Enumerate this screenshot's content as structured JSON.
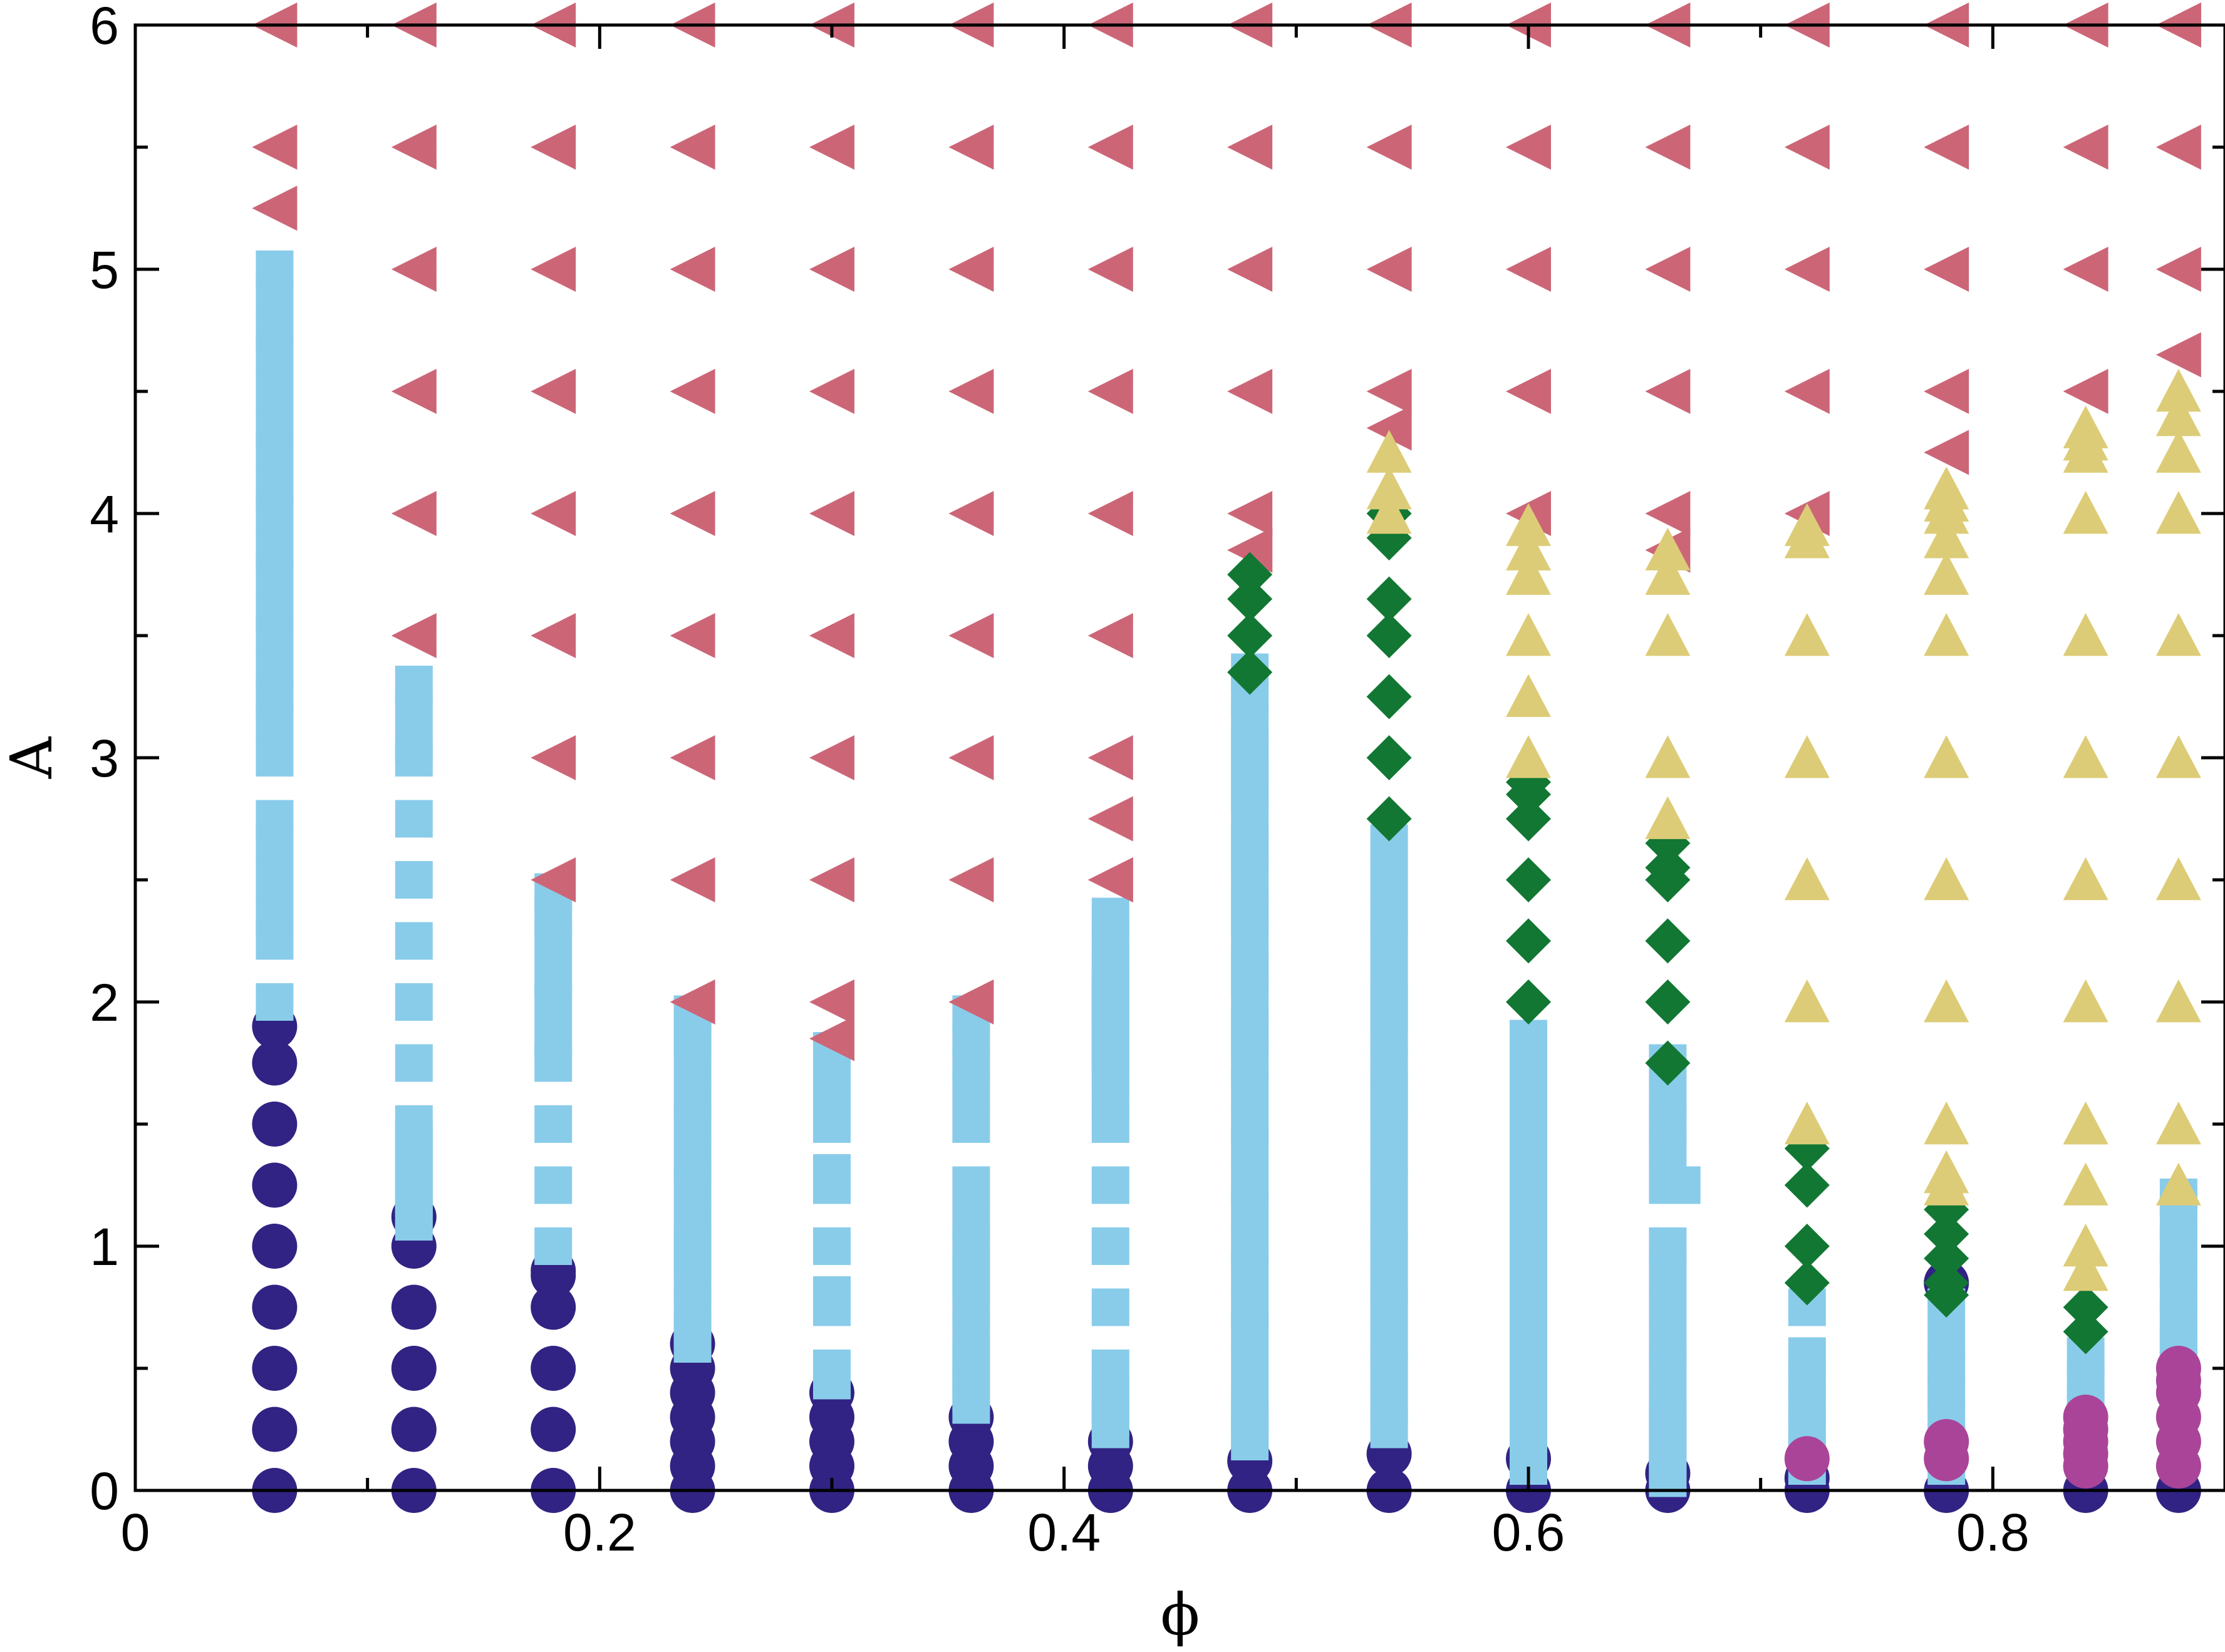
{
  "chart_data": {
    "type": "scatter",
    "title": "",
    "xlabel": "ϕ",
    "ylabel": "A",
    "xlim": [
      0,
      0.9
    ],
    "ylim": [
      0,
      6
    ],
    "x_ticks": [
      "0",
      "0.2",
      "0.4",
      "0.6",
      "0.8"
    ],
    "x_tick_values": [
      0,
      0.2,
      0.4,
      0.6,
      0.8
    ],
    "y_ticks": [
      "0",
      "1",
      "2",
      "3",
      "4",
      "5",
      "6"
    ],
    "y_tick_values": [
      0,
      1,
      2,
      3,
      4,
      5,
      6
    ],
    "minor_x_step": 0.1,
    "minor_y_step": 0.5,
    "grid": false,
    "legend": "none",
    "series": [
      {
        "marker": "circle",
        "color": "#312383",
        "x": [
          0.06,
          0.06,
          0.06,
          0.06,
          0.06,
          0.06,
          0.06,
          0.06,
          0.06,
          0.12,
          0.12,
          0.12,
          0.12,
          0.12,
          0.12,
          0.18,
          0.18,
          0.18,
          0.18,
          0.18,
          0.18,
          0.24,
          0.24,
          0.24,
          0.24,
          0.24,
          0.24,
          0.24,
          0.3,
          0.3,
          0.3,
          0.3,
          0.3,
          0.36,
          0.36,
          0.36,
          0.36,
          0.42,
          0.42,
          0.42,
          0.48,
          0.48,
          0.54,
          0.54,
          0.6,
          0.6,
          0.66,
          0.66,
          0.72,
          0.72,
          0.78,
          0.78,
          0.84,
          0.88
        ],
        "y": [
          0,
          0.25,
          0.5,
          0.75,
          1,
          1.25,
          1.5,
          1.75,
          1.9,
          0,
          0.25,
          0.5,
          0.75,
          1,
          1.12,
          0,
          0.25,
          0.5,
          0.75,
          0.9,
          0.88,
          0,
          0.1,
          0.2,
          0.3,
          0.4,
          0.5,
          0.6,
          0,
          0.1,
          0.2,
          0.3,
          0.4,
          0,
          0.1,
          0.2,
          0.3,
          0,
          0.1,
          0.2,
          0,
          0.12,
          0,
          0.15,
          0,
          0.13,
          0,
          0.07,
          0,
          0.05,
          0,
          0.85,
          0,
          0
        ]
      },
      {
        "marker": "square",
        "color": "#89ccea",
        "x": [
          0.06,
          0.06,
          0.06,
          0.06,
          0.06,
          0.06,
          0.06,
          0.06,
          0.06,
          0.06,
          0.06,
          0.06,
          0.06,
          0.06,
          0.06,
          0.06,
          0.06,
          0.06,
          0.06,
          0.06,
          0.06,
          0.06,
          0.06,
          0.12,
          0.12,
          0.12,
          0.12,
          0.12,
          0.12,
          0.12,
          0.12,
          0.12,
          0.12,
          0.12,
          0.12,
          0.12,
          0.12,
          0.12,
          0.12,
          0.12,
          0.12,
          0.18,
          0.18,
          0.18,
          0.18,
          0.18,
          0.18,
          0.18,
          0.18,
          0.18,
          0.18,
          0.24,
          0.24,
          0.24,
          0.24,
          0.24,
          0.24,
          0.24,
          0.24,
          0.24,
          0.24,
          0.24,
          0.24,
          0.24,
          0.24,
          0.24,
          0.3,
          0.3,
          0.3,
          0.3,
          0.3,
          0.3,
          0.3,
          0.3,
          0.3,
          0.3,
          0.3,
          0.3,
          0.36,
          0.36,
          0.36,
          0.36,
          0.36,
          0.36,
          0.36,
          0.36,
          0.36,
          0.36,
          0.36,
          0.36,
          0.36,
          0.36,
          0.36,
          0.36,
          0.36,
          0.42,
          0.42,
          0.42,
          0.42,
          0.42,
          0.42,
          0.42,
          0.42,
          0.42,
          0.42,
          0.42,
          0.42,
          0.42,
          0.42,
          0.42,
          0.42,
          0.42,
          0.42,
          0.42,
          0.42,
          0.42,
          0.42,
          0.42,
          0.48,
          0.48,
          0.48,
          0.48,
          0.48,
          0.48,
          0.48,
          0.48,
          0.48,
          0.48,
          0.48,
          0.48,
          0.48,
          0.48,
          0.48,
          0.48,
          0.48,
          0.48,
          0.48,
          0.48,
          0.48,
          0.48,
          0.48,
          0.48,
          0.48,
          0.48,
          0.48,
          0.48,
          0.48,
          0.48,
          0.48,
          0.48,
          0.48,
          0.48,
          0.54,
          0.54,
          0.54,
          0.54,
          0.54,
          0.54,
          0.54,
          0.54,
          0.54,
          0.54,
          0.54,
          0.54,
          0.54,
          0.54,
          0.54,
          0.54,
          0.54,
          0.54,
          0.54,
          0.54,
          0.54,
          0.54,
          0.6,
          0.6,
          0.6,
          0.6,
          0.6,
          0.6,
          0.6,
          0.6,
          0.6,
          0.6,
          0.6,
          0.6,
          0.6,
          0.6,
          0.6,
          0.6,
          0.6,
          0.6,
          0.6,
          0.6,
          0.6,
          0.6,
          0.6,
          0.66,
          0.66,
          0.66,
          0.66,
          0.66,
          0.66,
          0.66,
          0.66,
          0.66,
          0.66,
          0.66,
          0.66,
          0.66,
          0.66,
          0.66,
          0.66,
          0.66,
          0.666,
          0.72,
          0.72,
          0.72,
          0.72,
          0.72,
          0.72,
          0.72,
          0.78,
          0.78,
          0.78,
          0.78,
          0.78,
          0.78,
          0.78,
          0.78,
          0.84,
          0.84,
          0.84,
          0.84,
          0.84,
          0.88,
          0.88,
          0.88,
          0.88,
          0.88,
          0.88,
          0.88,
          0.88,
          0.88,
          0.88,
          0.88,
          0.88
        ],
        "y": [
          5.0,
          4.9,
          4.75,
          4.65,
          4.5,
          4.35,
          4.25,
          4.1,
          4.0,
          3.85,
          3.75,
          3.5,
          3.25,
          3.0,
          2.75,
          2.5,
          2.25,
          2.0,
          3.6,
          3.35,
          3.15,
          2.65,
          2.35,
          3.3,
          3.2,
          3.0,
          2.75,
          2.5,
          2.25,
          2.0,
          1.75,
          1.5,
          1.45,
          1.4,
          1.35,
          1.3,
          1.25,
          1.2,
          1.15,
          1.1,
          3.05,
          2.45,
          2.25,
          2.0,
          1.75,
          1.5,
          1.25,
          1.0,
          2.35,
          2.1,
          1.85,
          1.95,
          1.85,
          1.75,
          1.5,
          1.25,
          1.0,
          0.85,
          0.75,
          0.65,
          1.9,
          1.6,
          1.35,
          1.1,
          0.95,
          0.6,
          1.8,
          1.7,
          1.6,
          1.5,
          1.25,
          1.0,
          0.75,
          0.5,
          0.45,
          0.5,
          0.8,
          1.3,
          1.95,
          1.85,
          1.75,
          1.5,
          1.25,
          1.0,
          0.85,
          0.75,
          0.65,
          0.55,
          0.5,
          0.45,
          0.4,
          0.35,
          1.65,
          1.1,
          0.9,
          2.35,
          2.25,
          2.15,
          2.1,
          2.05,
          2.0,
          1.95,
          1.9,
          1.85,
          1.8,
          1.75,
          1.5,
          1.25,
          1.0,
          0.75,
          0.5,
          0.4,
          0.35,
          0.3,
          0.25,
          2.0,
          1.7,
          1.6,
          3.35,
          3.25,
          3.0,
          2.75,
          2.5,
          2.25,
          2.0,
          1.75,
          1.5,
          1.25,
          1.0,
          0.75,
          0.5,
          0.35,
          0.25,
          0.2,
          3.15,
          2.9,
          2.65,
          2.4,
          2.15,
          1.9,
          1.65,
          1.4,
          1.15,
          0.9,
          0.65,
          0.3,
          3.05,
          2.85,
          2.6,
          2.35,
          2.1,
          1.85,
          2.5,
          2.25,
          2.0,
          1.75,
          1.5,
          1.25,
          1.0,
          0.75,
          0.5,
          0.25,
          2.35,
          2.1,
          1.85,
          1.6,
          1.35,
          1.1,
          0.85,
          0.6,
          0.35,
          2.65,
          1.95,
          1.65,
          1.85,
          1.75,
          1.5,
          1.25,
          1.0,
          0.75,
          0.5,
          0.45,
          0.4,
          0.35,
          0.3,
          0.25,
          0.2,
          0.15,
          0.1,
          0.6,
          1.6,
          1.35,
          1.1,
          0.85,
          0.55,
          0.65,
          0.7,
          1.75,
          1.6,
          1.5,
          1.4,
          1.25,
          1.0,
          0.75,
          0.5,
          0.35,
          0.3,
          0.25,
          0.2,
          0.15,
          0.1,
          0.05,
          0.9,
          0.6,
          1.25,
          0.75,
          0.55,
          0.45,
          0.35,
          0.25,
          0.15,
          0.1,
          0.75,
          0.6,
          0.5,
          0.4,
          0.3,
          0.2,
          0.15,
          0.1,
          0.55,
          0.45,
          0.35,
          0.25,
          0.15,
          1.2,
          1.1,
          1.0,
          0.9,
          0.8,
          0.7,
          0.6,
          0.55,
          0.5,
          0.45,
          0.4,
          0.35
        ]
      },
      {
        "marker": "triangle-left",
        "color": "#cc6677",
        "x": [
          0.06,
          0.06,
          0.06,
          0.12,
          0.12,
          0.12,
          0.12,
          0.12,
          0.12,
          0.18,
          0.18,
          0.18,
          0.18,
          0.18,
          0.18,
          0.18,
          0.18,
          0.24,
          0.24,
          0.24,
          0.24,
          0.24,
          0.24,
          0.24,
          0.24,
          0.24,
          0.3,
          0.3,
          0.3,
          0.3,
          0.3,
          0.3,
          0.3,
          0.3,
          0.3,
          0.3,
          0.36,
          0.36,
          0.36,
          0.36,
          0.36,
          0.36,
          0.36,
          0.36,
          0.36,
          0.42,
          0.42,
          0.42,
          0.42,
          0.42,
          0.42,
          0.42,
          0.42,
          0.42,
          0.42,
          0.48,
          0.48,
          0.48,
          0.48,
          0.48,
          0.48,
          0.48,
          0.54,
          0.54,
          0.54,
          0.54,
          0.54,
          0.6,
          0.6,
          0.6,
          0.6,
          0.6,
          0.66,
          0.66,
          0.66,
          0.66,
          0.66,
          0.66,
          0.72,
          0.72,
          0.72,
          0.72,
          0.72,
          0.78,
          0.78,
          0.78,
          0.78,
          0.78,
          0.84,
          0.84,
          0.84,
          0.84,
          0.88,
          0.88,
          0.88,
          0.88,
          0.88
        ],
        "y": [
          6,
          5.5,
          5.25,
          6,
          5.5,
          5,
          4.5,
          4,
          3.5,
          6,
          5.5,
          5,
          4.5,
          4,
          3.5,
          3,
          2.5,
          6,
          5.5,
          5,
          4.5,
          4,
          3.5,
          3,
          2.5,
          2,
          6,
          5.5,
          5,
          4.5,
          4,
          3.5,
          3,
          2.5,
          2,
          1.85,
          6,
          5.5,
          5,
          4.5,
          4,
          3.5,
          3,
          2.5,
          2,
          6,
          5.5,
          5,
          4.5,
          4,
          3.5,
          3,
          2.75,
          2.5,
          2.5,
          6,
          5.5,
          5,
          4.5,
          4,
          3.85,
          3.85,
          6,
          5.5,
          5,
          4.5,
          4.35,
          6,
          5.5,
          5,
          4.5,
          4,
          6,
          5.5,
          5,
          4.5,
          4,
          3.85,
          6,
          5.5,
          5,
          4.5,
          4,
          6,
          5.5,
          5,
          4.5,
          4.25,
          6,
          5.5,
          5,
          4.5,
          6,
          5.5,
          5,
          4.65,
          6
        ]
      },
      {
        "marker": "diamond",
        "color": "#117733",
        "x": [
          0.48,
          0.48,
          0.48,
          0.48,
          0.54,
          0.54,
          0.54,
          0.54,
          0.54,
          0.54,
          0.54,
          0.6,
          0.6,
          0.6,
          0.6,
          0.6,
          0.6,
          0.66,
          0.66,
          0.66,
          0.66,
          0.66,
          0.66,
          0.72,
          0.72,
          0.72,
          0.72,
          0.78,
          0.78,
          0.78,
          0.78,
          0.78,
          0.84,
          0.84
        ],
        "y": [
          3.75,
          3.65,
          3.5,
          3.35,
          4.0,
          3.9,
          3.65,
          3.5,
          3.25,
          3.0,
          2.75,
          2.9,
          2.85,
          2.75,
          2.5,
          2.25,
          2.0,
          2.65,
          2.5,
          2.25,
          2.0,
          1.75,
          2.55,
          1.4,
          1.25,
          1.0,
          0.85,
          1.15,
          1.05,
          0.95,
          0.85,
          0.8,
          0.75,
          0.65
        ]
      },
      {
        "marker": "triangle-up",
        "color": "#ddcc77",
        "x": [
          0.54,
          0.54,
          0.54,
          0.6,
          0.6,
          0.6,
          0.6,
          0.6,
          0.6,
          0.66,
          0.66,
          0.66,
          0.66,
          0.66,
          0.72,
          0.72,
          0.72,
          0.72,
          0.72,
          0.72,
          0.72,
          0.78,
          0.78,
          0.78,
          0.78,
          0.78,
          0.78,
          0.78,
          0.78,
          0.78,
          0.78,
          0.78,
          0.78,
          0.84,
          0.84,
          0.84,
          0.84,
          0.84,
          0.84,
          0.84,
          0.84,
          0.84,
          0.84,
          0.84,
          0.84,
          0.84,
          0.88,
          0.88,
          0.88,
          0.88,
          0.88,
          0.88,
          0.88,
          0.88,
          0.88,
          0.88
        ],
        "y": [
          4.25,
          4.1,
          4.0,
          3.95,
          3.75,
          3.5,
          3.25,
          3.0,
          3.85,
          3.75,
          3.5,
          3.0,
          2.75,
          3.85,
          3.95,
          3.5,
          3.0,
          2.5,
          2.0,
          1.5,
          3.9,
          4.1,
          4.0,
          3.75,
          3.5,
          3.0,
          2.5,
          2.0,
          1.5,
          1.25,
          4.05,
          3.9,
          1.3,
          4.35,
          4.25,
          4.0,
          3.5,
          3.0,
          2.5,
          2.0,
          1.5,
          1.25,
          1.0,
          0.9,
          4.3,
          1.5,
          4.5,
          4.25,
          4.0,
          3.5,
          3.0,
          2.5,
          2.0,
          1.5,
          1.25,
          4.4
        ]
      },
      {
        "marker": "circle",
        "color": "#aa4499",
        "x": [
          0.72,
          0.78,
          0.78,
          0.84,
          0.84,
          0.84,
          0.84,
          0.84,
          0.88,
          0.88,
          0.88,
          0.88,
          0.88,
          0.88
        ],
        "y": [
          0.13,
          0.13,
          0.2,
          0.1,
          0.15,
          0.2,
          0.25,
          0.3,
          0.1,
          0.2,
          0.3,
          0.4,
          0.5,
          0.45
        ]
      }
    ]
  }
}
